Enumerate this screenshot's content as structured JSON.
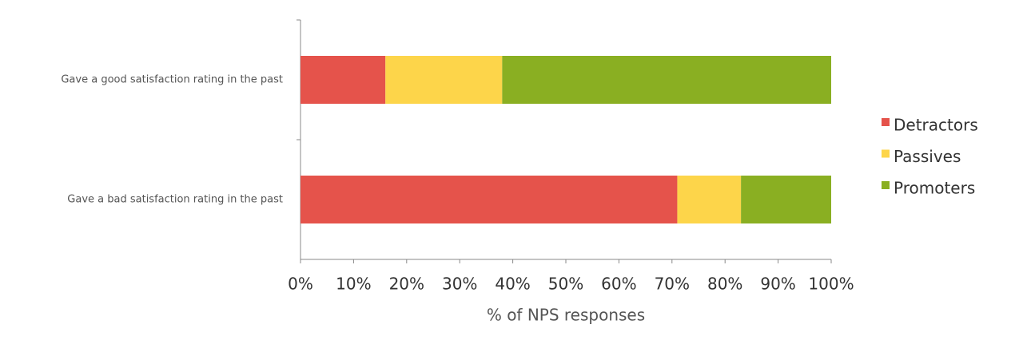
{
  "chart_data": {
    "type": "stacked-barh",
    "xlabel": "% of NPS responses",
    "categories": [
      "Gave a good satisfaction rating in the past",
      "Gave a bad satisfaction rating in the past"
    ],
    "series": [
      {
        "name": "Detractors",
        "color": "#e5534b",
        "values": [
          16,
          71
        ]
      },
      {
        "name": "Passives",
        "color": "#fdd54a",
        "values": [
          22,
          12
        ]
      },
      {
        "name": "Promoters",
        "color": "#8aaf22",
        "values": [
          62,
          17
        ]
      }
    ],
    "xlim": [
      0,
      100
    ],
    "xticks": [
      {
        "value": 0,
        "label": "0%"
      },
      {
        "value": 10,
        "label": "10%"
      },
      {
        "value": 20,
        "label": "20%"
      },
      {
        "value": 30,
        "label": "30%"
      },
      {
        "value": 40,
        "label": "40%"
      },
      {
        "value": 50,
        "label": "50%"
      },
      {
        "value": 60,
        "label": "60%"
      },
      {
        "value": 70,
        "label": "70%"
      },
      {
        "value": 80,
        "label": "80%"
      },
      {
        "value": 90,
        "label": "90%"
      },
      {
        "value": 100,
        "label": "100%"
      }
    ],
    "legend": "right"
  }
}
